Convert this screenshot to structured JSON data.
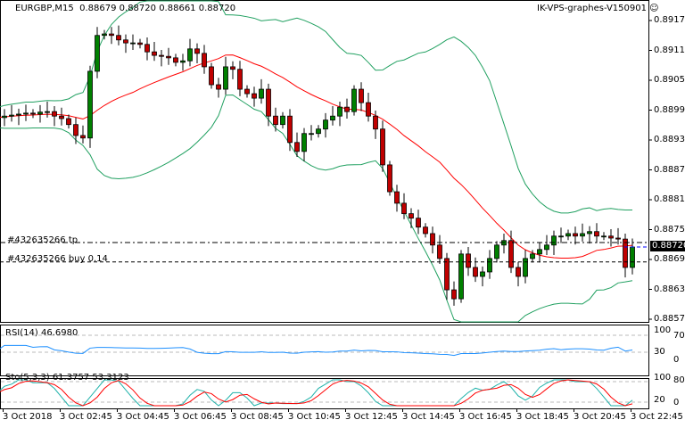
{
  "header": {
    "symbol": "EURGBP,M15",
    "ohlc": "0.88679 0.88720 0.88661 0.88720",
    "terminal": "IK-VPS-graphes-V150901",
    "smiley_icon": "smiley-icon"
  },
  "price_axis": [
    "0.89175",
    "0.89115",
    "0.89055",
    "0.88995",
    "0.88935",
    "0.88875",
    "0.88815",
    "0.88755",
    "0.88695",
    "0.88635",
    "0.88575"
  ],
  "last_price": "0.88720",
  "orders": [
    {
      "label": "#432635266 tp",
      "price": 0.88729
    },
    {
      "label": "#432635266 buy 0.14",
      "price": 0.8869
    }
  ],
  "rsi": {
    "label": "RSI(14) 46.6980",
    "levels": [
      "100",
      "70",
      "30",
      "0"
    ]
  },
  "stoch": {
    "label": "Sto(5,3,3) 61.3757 53.3123",
    "levels": [
      "100",
      "80",
      "20",
      "0"
    ]
  },
  "time_axis": [
    "3 Oct 2018",
    "3 Oct 02:45",
    "3 Oct 04:45",
    "3 Oct 06:45",
    "3 Oct 08:45",
    "3 Oct 10:45",
    "3 Oct 12:45",
    "3 Oct 14:45",
    "3 Oct 16:45",
    "3 Oct 18:45",
    "3 Oct 20:45",
    "3 Oct 22:45"
  ],
  "colors": {
    "bull": "#008000",
    "bear": "#c00000",
    "ma": "#ff0000",
    "bands": "#20a060",
    "rsi": "#1e90ff",
    "stoch_main": "#20b2aa",
    "stoch_signal": "#ff0000"
  },
  "chart_data": {
    "type": "candlestick",
    "closes": [
      0.8898,
      0.88983,
      0.88985,
      0.88987,
      0.88989,
      0.88987,
      0.88991,
      0.88992,
      0.88983,
      0.88978,
      0.88966,
      0.88944,
      0.88939,
      0.89073,
      0.89145,
      0.89148,
      0.89145,
      0.89136,
      0.8913,
      0.8913,
      0.89127,
      0.89112,
      0.89105,
      0.89103,
      0.891,
      0.89091,
      0.89094,
      0.89118,
      0.89109,
      0.89082,
      0.89046,
      0.89037,
      0.89082,
      0.89077,
      0.89037,
      0.89028,
      0.89019,
      0.89037,
      0.88983,
      0.88966,
      0.88983,
      0.8893,
      0.88912,
      0.88948,
      0.88948,
      0.88957,
      0.88975,
      0.88983,
      0.89001,
      0.88992,
      0.89037,
      0.8901,
      0.88983,
      0.88957,
      0.88885,
      0.88831,
      0.88808,
      0.88787,
      0.88778,
      0.8876,
      0.88747,
      0.88724,
      0.88697,
      0.88634,
      0.88616,
      0.88706,
      0.88679,
      0.88661,
      0.8867,
      0.88697,
      0.88724,
      0.88733,
      0.88679,
      0.88661,
      0.88697,
      0.88706,
      0.88715,
      0.88724,
      0.88742,
      0.88742,
      0.88747,
      0.88742,
      0.88747,
      0.88751,
      0.88742,
      0.88742,
      0.88738,
      0.88736,
      0.88679,
      0.8872
    ],
    "ylim": [
      0.88575,
      0.89175
    ]
  }
}
